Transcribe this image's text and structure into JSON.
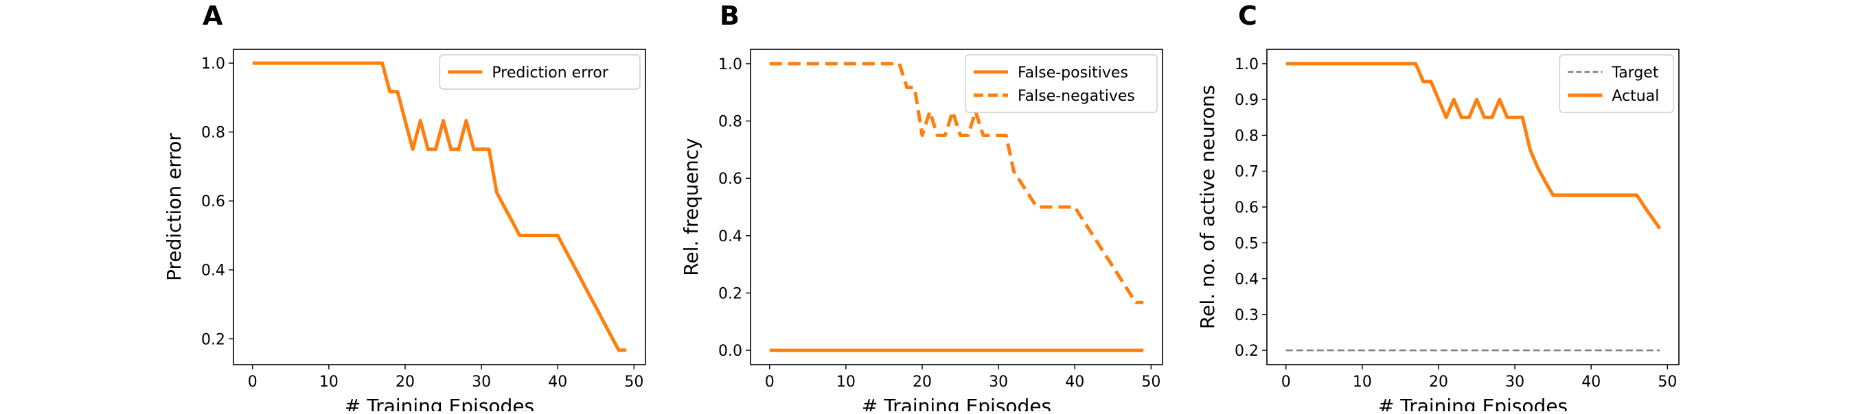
{
  "figure": {
    "colors": {
      "orange": "#ff7f0e",
      "gray": "#7f7f7f",
      "frame": "#000000"
    }
  },
  "chart_data": [
    {
      "type": "line",
      "panel_label": "A",
      "title": "",
      "xlabel": "# Training Episodes",
      "ylabel": "Prediction error",
      "xlim": [
        -2.5,
        51.5
      ],
      "ylim": [
        0.125,
        1.04
      ],
      "xticks": [
        0,
        10,
        20,
        30,
        40,
        50
      ],
      "yticks": [
        0.2,
        0.4,
        0.6,
        0.8,
        1.0
      ],
      "xtick_labels": [
        "0",
        "10",
        "20",
        "30",
        "40",
        "50"
      ],
      "ytick_labels": [
        "0.2",
        "0.4",
        "0.6",
        "0.8",
        "1.0"
      ],
      "grid": false,
      "legend_position": "top-right",
      "series": [
        {
          "name": "Prediction error",
          "color": "#ff7f0e",
          "style": "solid",
          "x": [
            0,
            1,
            2,
            3,
            4,
            5,
            6,
            7,
            8,
            9,
            10,
            11,
            12,
            13,
            14,
            15,
            16,
            17,
            18,
            19,
            20,
            21,
            22,
            23,
            24,
            25,
            26,
            27,
            28,
            29,
            30,
            31,
            32,
            33,
            34,
            35,
            36,
            37,
            38,
            39,
            40,
            41,
            42,
            43,
            44,
            45,
            46,
            47,
            48,
            49
          ],
          "y": [
            1,
            1,
            1,
            1,
            1,
            1,
            1,
            1,
            1,
            1,
            1,
            1,
            1,
            1,
            1,
            1,
            1,
            1,
            0.917,
            0.917,
            0.833,
            0.75,
            0.833,
            0.75,
            0.75,
            0.833,
            0.75,
            0.75,
            0.833,
            0.75,
            0.75,
            0.75,
            0.625,
            0.583,
            0.542,
            0.5,
            0.5,
            0.5,
            0.5,
            0.5,
            0.5,
            0.458,
            0.417,
            0.375,
            0.333,
            0.292,
            0.25,
            0.208,
            0.167,
            0.167
          ]
        }
      ]
    },
    {
      "type": "line",
      "panel_label": "B",
      "title": "",
      "xlabel": "# Training Episodes",
      "ylabel": "Rel. frequency",
      "xlim": [
        -2.5,
        51.5
      ],
      "ylim": [
        -0.05,
        1.05
      ],
      "xticks": [
        0,
        10,
        20,
        30,
        40,
        50
      ],
      "yticks": [
        0.0,
        0.2,
        0.4,
        0.6,
        0.8,
        1.0
      ],
      "xtick_labels": [
        "0",
        "10",
        "20",
        "30",
        "40",
        "50"
      ],
      "ytick_labels": [
        "0.0",
        "0.2",
        "0.4",
        "0.6",
        "0.8",
        "1.0"
      ],
      "grid": false,
      "legend_position": "top-right",
      "series": [
        {
          "name": "False-positives",
          "color": "#ff7f0e",
          "style": "solid",
          "x": [
            0,
            49
          ],
          "y": [
            0,
            0
          ]
        },
        {
          "name": "False-negatives",
          "color": "#ff7f0e",
          "style": "dashed",
          "x": [
            0,
            1,
            2,
            3,
            4,
            5,
            6,
            7,
            8,
            9,
            10,
            11,
            12,
            13,
            14,
            15,
            16,
            17,
            18,
            19,
            20,
            21,
            22,
            23,
            24,
            25,
            26,
            27,
            28,
            29,
            30,
            31,
            32,
            33,
            34,
            35,
            36,
            37,
            38,
            39,
            40,
            41,
            42,
            43,
            44,
            45,
            46,
            47,
            48,
            49
          ],
          "y": [
            1,
            1,
            1,
            1,
            1,
            1,
            1,
            1,
            1,
            1,
            1,
            1,
            1,
            1,
            1,
            1,
            1,
            1,
            0.917,
            0.917,
            0.75,
            0.833,
            0.75,
            0.75,
            0.833,
            0.75,
            0.75,
            0.833,
            0.75,
            0.75,
            0.75,
            0.75,
            0.625,
            0.583,
            0.542,
            0.5,
            0.5,
            0.5,
            0.5,
            0.5,
            0.5,
            0.458,
            0.417,
            0.375,
            0.333,
            0.292,
            0.25,
            0.208,
            0.167,
            0.167
          ]
        }
      ]
    },
    {
      "type": "line",
      "panel_label": "C",
      "title": "",
      "xlabel": "# Training Episodes",
      "ylabel": "Rel. no. of active neurons",
      "xlim": [
        -2.5,
        51.5
      ],
      "ylim": [
        0.16,
        1.04
      ],
      "xticks": [
        0,
        10,
        20,
        30,
        40,
        50
      ],
      "yticks": [
        0.2,
        0.3,
        0.4,
        0.5,
        0.6,
        0.7,
        0.8,
        0.9,
        1.0
      ],
      "xtick_labels": [
        "0",
        "10",
        "20",
        "30",
        "40",
        "50"
      ],
      "ytick_labels": [
        "0.2",
        "0.3",
        "0.4",
        "0.5",
        "0.6",
        "0.7",
        "0.8",
        "0.9",
        "1.0"
      ],
      "grid": false,
      "legend_position": "top-right",
      "series": [
        {
          "name": "Target",
          "color": "#7f7f7f",
          "style": "dashed-thin",
          "x": [
            0,
            49
          ],
          "y": [
            0.2,
            0.2
          ]
        },
        {
          "name": "Actual",
          "color": "#ff7f0e",
          "style": "solid",
          "x": [
            0,
            1,
            2,
            3,
            4,
            5,
            6,
            7,
            8,
            9,
            10,
            11,
            12,
            13,
            14,
            15,
            16,
            17,
            18,
            19,
            20,
            21,
            22,
            23,
            24,
            25,
            26,
            27,
            28,
            29,
            30,
            31,
            32,
            33,
            34,
            35,
            36,
            37,
            38,
            39,
            40,
            41,
            42,
            43,
            44,
            45,
            46,
            47,
            48,
            49
          ],
          "y": [
            1,
            1,
            1,
            1,
            1,
            1,
            1,
            1,
            1,
            1,
            1,
            1,
            1,
            1,
            1,
            1,
            1,
            1,
            0.95,
            0.95,
            0.9,
            0.85,
            0.9,
            0.85,
            0.85,
            0.9,
            0.85,
            0.85,
            0.9,
            0.85,
            0.85,
            0.85,
            0.76,
            0.71,
            0.67,
            0.633,
            0.633,
            0.633,
            0.633,
            0.633,
            0.633,
            0.633,
            0.633,
            0.633,
            0.633,
            0.633,
            0.633,
            0.6,
            0.57,
            0.54
          ]
        }
      ]
    }
  ]
}
